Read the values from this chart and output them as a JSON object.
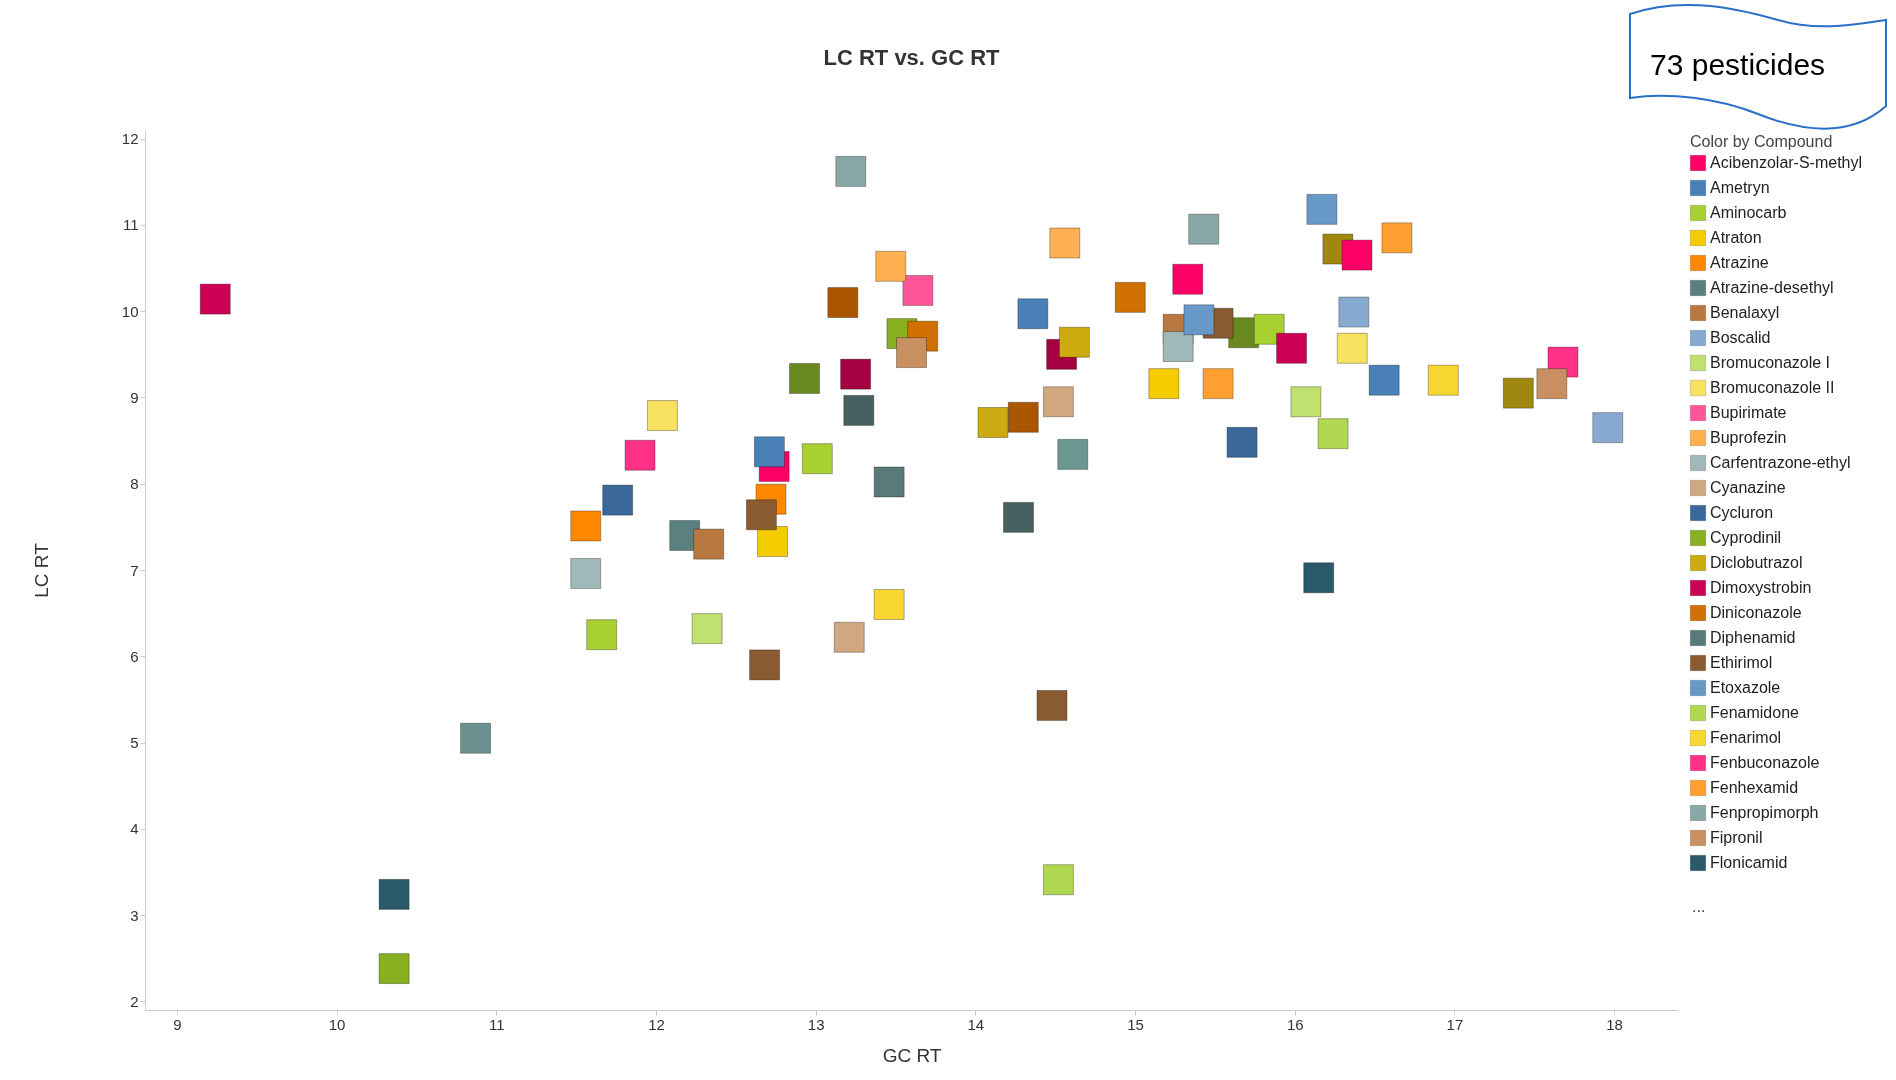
{
  "chart_data": {
    "type": "scatter",
    "title": "LC RT vs. GC RT",
    "xlabel": "GC RT",
    "ylabel": "LC RT",
    "legend_title": "Color by Compound",
    "legend": "right",
    "marker": "square",
    "grid": false,
    "xlim": [
      8.8,
      18.4
    ],
    "ylim": [
      1.9,
      12.1
    ],
    "xticks": [
      9,
      10,
      11,
      12,
      13,
      14,
      15,
      16,
      17,
      18
    ],
    "yticks": [
      2,
      3,
      4,
      5,
      6,
      7,
      8,
      9,
      10,
      11,
      12
    ],
    "annotations": [
      "73 pesticides",
      "..."
    ],
    "series": [
      {
        "type": "scatter",
        "x": [
          10.87,
          14.61
        ],
        "values": [
          5.05,
          8.34
        ],
        "colors": [
          "#6a9090",
          "#6a9890"
        ]
      },
      {
        "type": "scatter",
        "x": [
          13.17,
          14.3,
          12.93,
          15.68,
          13.25,
          14.54,
          13.27,
          14.27,
          16.27,
          17.4
        ],
        "values": [
          10.1,
          8.77,
          9.22,
          9.75,
          9.27,
          9.5,
          8.85,
          7.61,
          10.72,
          9.05
        ],
        "colors": [
          "#aa5500",
          "#aa5500",
          "#6a8a20",
          "#6a8a20",
          "#a50040",
          "#a50040",
          "#486060",
          "#486060",
          "#a08810",
          "#a08810"
        ]
      },
      {
        "name": "Acibenzolar-S-methyl",
        "color": "#ff0066",
        "x": [
          12.74,
          15.33,
          16.39
        ],
        "values": [
          8.2,
          10.37,
          10.65
        ]
      },
      {
        "name": "Ametryn",
        "color": "#4a80b8",
        "x": [
          12.71,
          14.36,
          16.56
        ],
        "values": [
          8.37,
          9.97,
          9.2
        ]
      },
      {
        "name": "Aminocarb",
        "color": "#a8d030",
        "x": [
          13.01,
          11.66,
          15.84
        ],
        "values": [
          8.29,
          6.25,
          9.79
        ]
      },
      {
        "name": "Atraton",
        "color": "#f5cc00",
        "x": [
          12.73,
          15.18
        ],
        "values": [
          7.33,
          9.16
        ]
      },
      {
        "name": "Atrazine",
        "color": "#ff8800",
        "x": [
          11.56,
          12.72
        ],
        "values": [
          7.51,
          7.82
        ]
      },
      {
        "name": "Atrazine-desethyl",
        "color": "#5a8080",
        "x": [
          12.18
        ],
        "values": [
          7.4
        ]
      },
      {
        "name": "Benalaxyl",
        "color": "#b87840",
        "x": [
          12.33,
          15.27
        ],
        "values": [
          7.3,
          9.79
        ]
      },
      {
        "name": "Boscalid",
        "color": "#88aad0",
        "x": [
          16.37,
          17.96
        ],
        "values": [
          9.99,
          8.65
        ]
      },
      {
        "name": "Bromuconazole I",
        "color": "#c0e070",
        "x": [
          12.32,
          16.07
        ],
        "values": [
          6.32,
          8.95
        ]
      },
      {
        "name": "Bromuconazole II",
        "color": "#f8e060",
        "x": [
          12.04,
          16.36
        ],
        "values": [
          8.79,
          9.57
        ]
      },
      {
        "name": "Bupirimate",
        "color": "#ff5599",
        "x": [
          13.64
        ],
        "values": [
          10.24
        ]
      },
      {
        "name": "Buprofezin",
        "color": "#ffb050",
        "x": [
          13.47,
          14.56
        ],
        "values": [
          10.52,
          10.79
        ]
      },
      {
        "name": "Carfentrazone-ethyl",
        "color": "#a0b8b8",
        "x": [
          11.56,
          15.27
        ],
        "values": [
          6.96,
          9.59
        ]
      },
      {
        "name": "Cyanazine",
        "color": "#d0a880",
        "x": [
          13.21,
          14.52
        ],
        "values": [
          6.22,
          8.95
        ]
      },
      {
        "name": "Cycluron",
        "color": "#3a6898",
        "x": [
          11.76,
          15.67
        ],
        "values": [
          7.81,
          8.48
        ]
      },
      {
        "name": "Cyprodinil",
        "color": "#88b020",
        "x": [
          13.54,
          10.36
        ],
        "values": [
          9.74,
          2.38
        ]
      },
      {
        "name": "Diclobutrazol",
        "color": "#ccaa10",
        "x": [
          14.11,
          14.62
        ],
        "values": [
          8.71,
          9.64
        ]
      },
      {
        "name": "Dimoxystrobin",
        "color": "#cc0055",
        "x": [
          9.24,
          15.98
        ],
        "values": [
          10.14,
          9.57
        ]
      },
      {
        "name": "Diniconazole",
        "color": "#d07000",
        "x": [
          13.67,
          14.97
        ],
        "values": [
          9.71,
          10.16
        ]
      },
      {
        "name": "Diphenamid",
        "color": "#5a7a7a",
        "x": [
          13.46
        ],
        "values": [
          8.02
        ]
      },
      {
        "name": "Ethirimol",
        "color": "#8a5a30",
        "x": [
          12.66,
          12.68,
          14.48,
          15.52
        ],
        "values": [
          7.64,
          5.9,
          5.43,
          9.86
        ]
      },
      {
        "name": "Etoxazole",
        "color": "#6898c8",
        "x": [
          15.4,
          16.17
        ],
        "values": [
          9.9,
          11.18
        ]
      },
      {
        "name": "Fenamidone",
        "color": "#b0d850",
        "x": [
          14.52,
          16.24
        ],
        "values": [
          3.41,
          8.58
        ]
      },
      {
        "name": "Fenarimol",
        "color": "#f8d830",
        "x": [
          13.46,
          16.93
        ],
        "values": [
          6.6,
          9.2
        ]
      },
      {
        "name": "Fenbuconazole",
        "color": "#ff3088",
        "x": [
          11.9,
          17.68
        ],
        "values": [
          8.33,
          9.41
        ]
      },
      {
        "name": "Fenhexamid",
        "color": "#ffa030",
        "x": [
          15.52,
          16.64
        ],
        "values": [
          9.16,
          10.85
        ]
      },
      {
        "name": "Fenpropimorph",
        "color": "#88a8a8",
        "x": [
          13.22,
          15.43
        ],
        "values": [
          11.62,
          10.95
        ]
      },
      {
        "name": "Fipronil",
        "color": "#c89060",
        "x": [
          13.6,
          17.61
        ],
        "values": [
          9.52,
          9.16
        ]
      },
      {
        "name": "Flonicamid",
        "color": "#2a5a6a",
        "x": [
          10.36,
          16.15
        ],
        "values": [
          3.24,
          6.91
        ]
      }
    ]
  }
}
